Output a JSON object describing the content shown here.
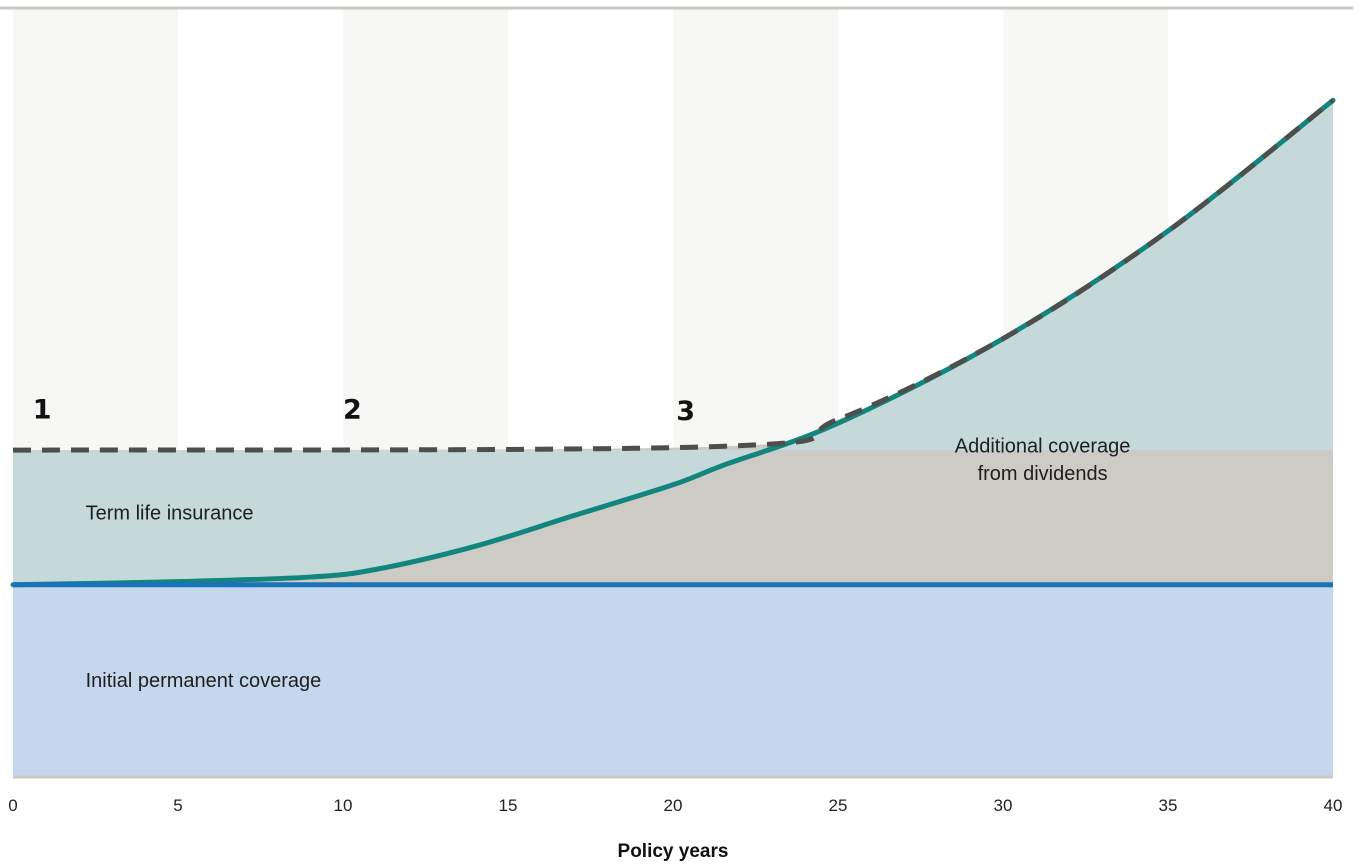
{
  "chart_data": {
    "type": "area",
    "xlabel": "Policy years",
    "ylabel": "",
    "xlim": [
      0,
      40
    ],
    "ylim": [
      0,
      100
    ],
    "x_ticks": [
      0,
      5,
      10,
      15,
      20,
      25,
      30,
      35,
      40
    ],
    "grid": "alternating vertical bands every 5 years",
    "colors": {
      "permanent": "#c5d7ec",
      "term": "#c6d9da",
      "dividends": "#cdcbc6",
      "base_line": "#1a73b8",
      "growth_line": "#12857e",
      "dashed_line": "#4e4e4c",
      "band": "#f7f7f5",
      "rule": "#c9c8c2"
    },
    "series": [
      {
        "name": "Initial permanent coverage",
        "x": [
          0,
          40
        ],
        "values": [
          25,
          25
        ]
      },
      {
        "name": "Term life insurance",
        "x": [
          0,
          21.5
        ],
        "values": [
          42.5,
          42.5
        ]
      },
      {
        "name": "Additional coverage from dividends",
        "x": [
          0,
          5,
          9,
          11,
          14,
          17,
          20,
          21.5,
          25,
          30,
          35,
          40
        ],
        "values": [
          25,
          25.4,
          26,
          27,
          30,
          34,
          38,
          40.5,
          46,
          57,
          71,
          88
        ]
      }
    ],
    "total_coverage_line": {
      "x": [
        0,
        21.5,
        25,
        30,
        35,
        40
      ],
      "values": [
        42.5,
        43,
        46.5,
        57,
        71,
        88
      ]
    },
    "annotations": [
      {
        "text": "1",
        "x": 0.6,
        "y": 46.6
      },
      {
        "text": "2",
        "x": 10,
        "y": 46.6
      },
      {
        "text": "3",
        "x": 20.1,
        "y": 46.4
      },
      {
        "text": "Initial permanent coverage",
        "x": 2.2,
        "y": 11.7
      },
      {
        "text": "Term life insurance",
        "x": 2.2,
        "y": 33.5
      },
      {
        "text": "Additional coverage",
        "x": 29.2,
        "y": 42.2
      },
      {
        "text": "from dividends",
        "x": 29.2,
        "y": 38.6
      }
    ]
  }
}
